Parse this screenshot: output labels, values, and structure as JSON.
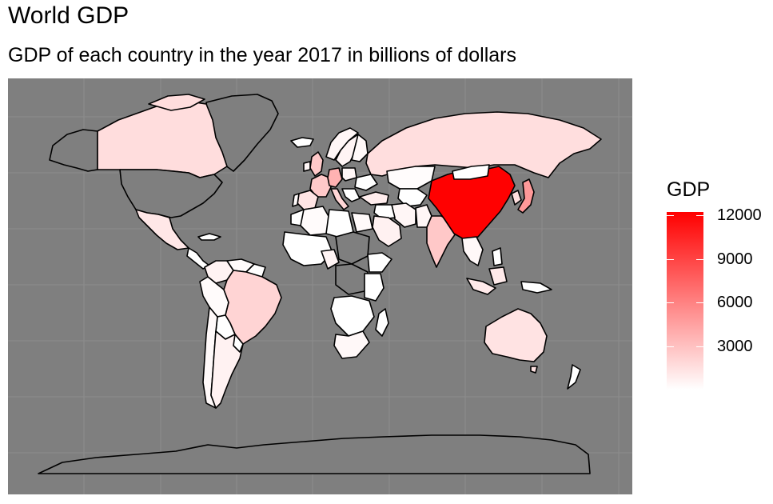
{
  "title": "World GDP",
  "subtitle": "GDP of each country in the year 2017 in billions of dollars",
  "map": {
    "panel_background": "#7f7f7f",
    "grid_color": "#8c8c8c",
    "no_data_color": "#7f7f7f",
    "border_color": "#000000"
  },
  "legend": {
    "title": "GDP",
    "scale_low_color": "#ffffff",
    "scale_high_color": "#ff0000",
    "domain": [
      0,
      12240
    ],
    "ticks": [
      {
        "value": 12000,
        "label": "12000"
      },
      {
        "value": 9000,
        "label": "9000"
      },
      {
        "value": 6000,
        "label": "6000"
      },
      {
        "value": 3000,
        "label": "3000"
      }
    ]
  },
  "chart_data": {
    "type": "heatmap",
    "title": "World GDP",
    "subtitle": "GDP of each country in the year 2017 in billions of dollars",
    "legend_title": "GDP",
    "legend_placement": "right",
    "series": [
      {
        "name": "China",
        "value": 12200
      },
      {
        "name": "Japan",
        "value": 4900
      },
      {
        "name": "Germany",
        "value": 3700
      },
      {
        "name": "India",
        "value": 2650
      },
      {
        "name": "United Kingdom",
        "value": 2600
      },
      {
        "name": "France",
        "value": 2580
      },
      {
        "name": "Brazil",
        "value": 2060
      },
      {
        "name": "Italy",
        "value": 1950
      },
      {
        "name": "Canada",
        "value": 1650
      },
      {
        "name": "Russia",
        "value": 1580
      },
      {
        "name": "South Korea",
        "value": 1530
      },
      {
        "name": "Australia",
        "value": 1330
      },
      {
        "name": "Spain",
        "value": 1310
      },
      {
        "name": "Mexico",
        "value": 1160
      },
      {
        "name": "Indonesia",
        "value": 1020
      },
      {
        "name": "Turkey",
        "value": 850
      },
      {
        "name": "Saudi Arabia",
        "value": 690
      },
      {
        "name": "Argentina",
        "value": 640
      },
      {
        "name": "Iran",
        "value": 450
      },
      {
        "name": "South Africa",
        "value": 350
      },
      {
        "name": "Egypt",
        "value": 235
      },
      {
        "name": "Kazakhstan",
        "value": 160
      },
      {
        "name": "Algeria",
        "value": 170
      },
      {
        "name": "Peru",
        "value": 210
      },
      {
        "name": "Chile",
        "value": 277
      }
    ]
  }
}
